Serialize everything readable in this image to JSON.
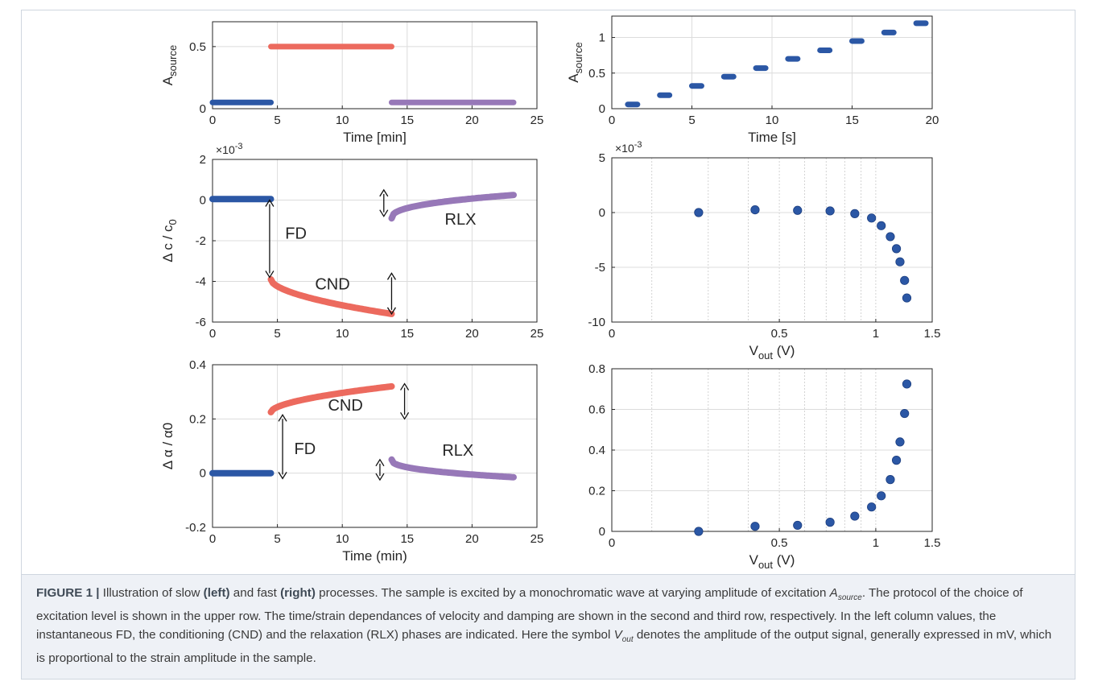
{
  "chart_data": [
    {
      "type": "scatter",
      "panel": "top-left",
      "xlabel": "Time [min]",
      "ylabel": "A_source",
      "xlim": [
        0,
        25
      ],
      "ylim": [
        0,
        0.7
      ],
      "xticks": [
        "0",
        "5",
        "10",
        "15",
        "20",
        "25"
      ],
      "yticks": [
        "0",
        "0.5"
      ],
      "ytick_values": [
        0,
        0.5
      ],
      "grid": true,
      "series": [
        {
          "color": "#2b57a5",
          "x_range": [
            0,
            4.5
          ],
          "y": 0.05
        },
        {
          "color": "#ec6a5e",
          "x_range": [
            4.5,
            13.8
          ],
          "y": 0.5
        },
        {
          "color": "#9778b8",
          "x_range": [
            13.8,
            23.2
          ],
          "y": 0.05
        }
      ]
    },
    {
      "type": "scatter",
      "panel": "top-right",
      "xlabel": "Time [s]",
      "ylabel": "A_source",
      "xlim": [
        0,
        20
      ],
      "ylim": [
        0,
        1.3
      ],
      "xticks": [
        "0",
        "5",
        "10",
        "15",
        "20"
      ],
      "yticks": [
        "0",
        "0.5",
        "1"
      ],
      "ytick_values": [
        0,
        0.5,
        1
      ],
      "grid": true,
      "series": [
        {
          "color": "#2b57a5",
          "segments": [
            [
              1.0,
              1.6,
              0.06
            ],
            [
              3.0,
              3.6,
              0.19
            ],
            [
              5.0,
              5.6,
              0.32
            ],
            [
              7.0,
              7.6,
              0.45
            ],
            [
              9.0,
              9.6,
              0.57
            ],
            [
              11.0,
              11.6,
              0.7
            ],
            [
              13.0,
              13.6,
              0.82
            ],
            [
              15.0,
              15.6,
              0.95
            ],
            [
              17.0,
              17.6,
              1.07
            ],
            [
              19.0,
              19.6,
              1.2
            ]
          ]
        }
      ]
    },
    {
      "type": "scatter",
      "panel": "middle-left",
      "xlabel": "",
      "ylabel": "Δ c / c0",
      "exponent": "×10-3",
      "xlim": [
        0,
        25
      ],
      "ylim": [
        -6,
        2
      ],
      "xticks": [
        "0",
        "5",
        "10",
        "15",
        "20",
        "25"
      ],
      "yticks": [
        "-6",
        "-4",
        "-2",
        "0",
        "2"
      ],
      "ytick_values": [
        -6,
        -4,
        -2,
        0,
        2
      ],
      "grid": true,
      "series": [
        {
          "color": "#2b57a5",
          "curve": {
            "x0": 0,
            "x1": 4.5,
            "y0": 0.05,
            "y1": 0.05,
            "k": 1
          }
        },
        {
          "color": "#ec6a5e",
          "curve": {
            "x0": 4.5,
            "x1": 13.8,
            "y0": -3.9,
            "y1": -5.6,
            "k": 0.55
          }
        },
        {
          "color": "#9778b8",
          "curve": {
            "x0": 13.8,
            "x1": 23.2,
            "y0": -0.9,
            "y1": 0.25,
            "k": 0.4
          }
        }
      ],
      "annotations": [
        {
          "text": "FD",
          "x": 5.6,
          "y": -1.9
        },
        {
          "text": "CND",
          "x": 7.9,
          "y": -4.4
        },
        {
          "text": "RLX",
          "x": 17.9,
          "y": -1.2
        }
      ],
      "arrows": [
        {
          "x": 4.4,
          "y1": 0.0,
          "y2": -3.8
        },
        {
          "x": 13.2,
          "y1": 0.5,
          "y2": -0.8
        },
        {
          "x": 13.8,
          "y1": -3.6,
          "y2": -5.6
        }
      ]
    },
    {
      "type": "scatter",
      "panel": "middle-right",
      "xlabel": "V_out (V)",
      "ylabel": "",
      "exponent": "×10-3",
      "xscale": "log",
      "xlim": [
        0,
        1.5
      ],
      "ylim": [
        -10,
        5
      ],
      "xticks": [
        "0",
        "0.5",
        "1",
        "1.5"
      ],
      "yticks": [
        "-10",
        "-5",
        "0",
        "5"
      ],
      "ytick_values": [
        -10,
        -5,
        0,
        5
      ],
      "grid": true,
      "series": [
        {
          "color": "#2b57a5",
          "x": [
            0.28,
            0.42,
            0.57,
            0.72,
            0.86,
            0.97,
            1.04,
            1.11,
            1.16,
            1.19,
            1.23,
            1.25
          ],
          "y": [
            0.0,
            0.25,
            0.2,
            0.15,
            -0.1,
            -0.5,
            -1.2,
            -2.2,
            -3.3,
            -4.5,
            -6.2,
            -7.8
          ]
        }
      ]
    },
    {
      "type": "scatter",
      "panel": "bottom-left",
      "xlabel": "Time (min)",
      "ylabel": "Δ α / α0",
      "xlim": [
        0,
        25
      ],
      "ylim": [
        -0.2,
        0.4
      ],
      "xticks": [
        "0",
        "5",
        "10",
        "15",
        "20",
        "25"
      ],
      "yticks": [
        "-0.2",
        "0",
        "0.2",
        "0.4"
      ],
      "ytick_values": [
        -0.2,
        0,
        0.2,
        0.4
      ],
      "grid": true,
      "series": [
        {
          "color": "#2b57a5",
          "curve": {
            "x0": 0,
            "x1": 4.5,
            "y0": 0.0,
            "y1": 0.0,
            "k": 1
          }
        },
        {
          "color": "#ec6a5e",
          "curve": {
            "x0": 4.5,
            "x1": 13.8,
            "y0": 0.225,
            "y1": 0.32,
            "k": 0.55
          }
        },
        {
          "color": "#9778b8",
          "curve": {
            "x0": 13.8,
            "x1": 23.2,
            "y0": 0.05,
            "y1": -0.015,
            "k": 0.4
          }
        }
      ],
      "annotations": [
        {
          "text": "FD",
          "x": 6.3,
          "y": 0.07
        },
        {
          "text": "CND",
          "x": 8.9,
          "y": 0.23
        },
        {
          "text": "RLX",
          "x": 17.7,
          "y": 0.065
        }
      ],
      "arrows": [
        {
          "x": 5.4,
          "y1": 0.215,
          "y2": -0.02
        },
        {
          "x": 14.8,
          "y1": 0.33,
          "y2": 0.2
        },
        {
          "x": 12.9,
          "y1": 0.05,
          "y2": -0.025
        }
      ]
    },
    {
      "type": "scatter",
      "panel": "bottom-right",
      "xlabel": "V_out (V)",
      "ylabel": "",
      "xscale": "log",
      "xlim": [
        0,
        1.5
      ],
      "ylim": [
        0,
        0.8
      ],
      "xticks": [
        "0",
        "0.5",
        "1",
        "1.5"
      ],
      "yticks": [
        "0",
        "0.2",
        "0.4",
        "0.6",
        "0.8"
      ],
      "ytick_values": [
        0,
        0.2,
        0.4,
        0.6,
        0.8
      ],
      "grid": true,
      "series": [
        {
          "color": "#2b57a5",
          "x": [
            0.28,
            0.42,
            0.57,
            0.72,
            0.86,
            0.97,
            1.04,
            1.11,
            1.16,
            1.19,
            1.23,
            1.25
          ],
          "y": [
            0.0,
            0.025,
            0.03,
            0.045,
            0.075,
            0.12,
            0.175,
            0.255,
            0.35,
            0.44,
            0.58,
            0.725
          ]
        }
      ]
    }
  ],
  "caption": {
    "label": "FIGURE 1 |",
    "t1": " Illustration of slow ",
    "left": "(left)",
    "t2": " and fast ",
    "right": "(right)",
    "t3": " processes. The sample is excited by a monochromatic wave at varying amplitude of excitation ",
    "asource": "A",
    "asource_sub": "source",
    "t4": ". The protocol of the choice of excitation level is shown in the upper row. The time/strain dependances of velocity and damping are shown in the second and third row, respectively. In the left column values, the instantaneous FD, the conditioning (CND) and the relaxation (RLX) phases are indicated. Here the symbol ",
    "vout": "V",
    "vout_sub": "out",
    "t5": " denotes the amplitude of the output signal, generally expressed in mV, which is proportional to the strain amplitude in the sample."
  }
}
